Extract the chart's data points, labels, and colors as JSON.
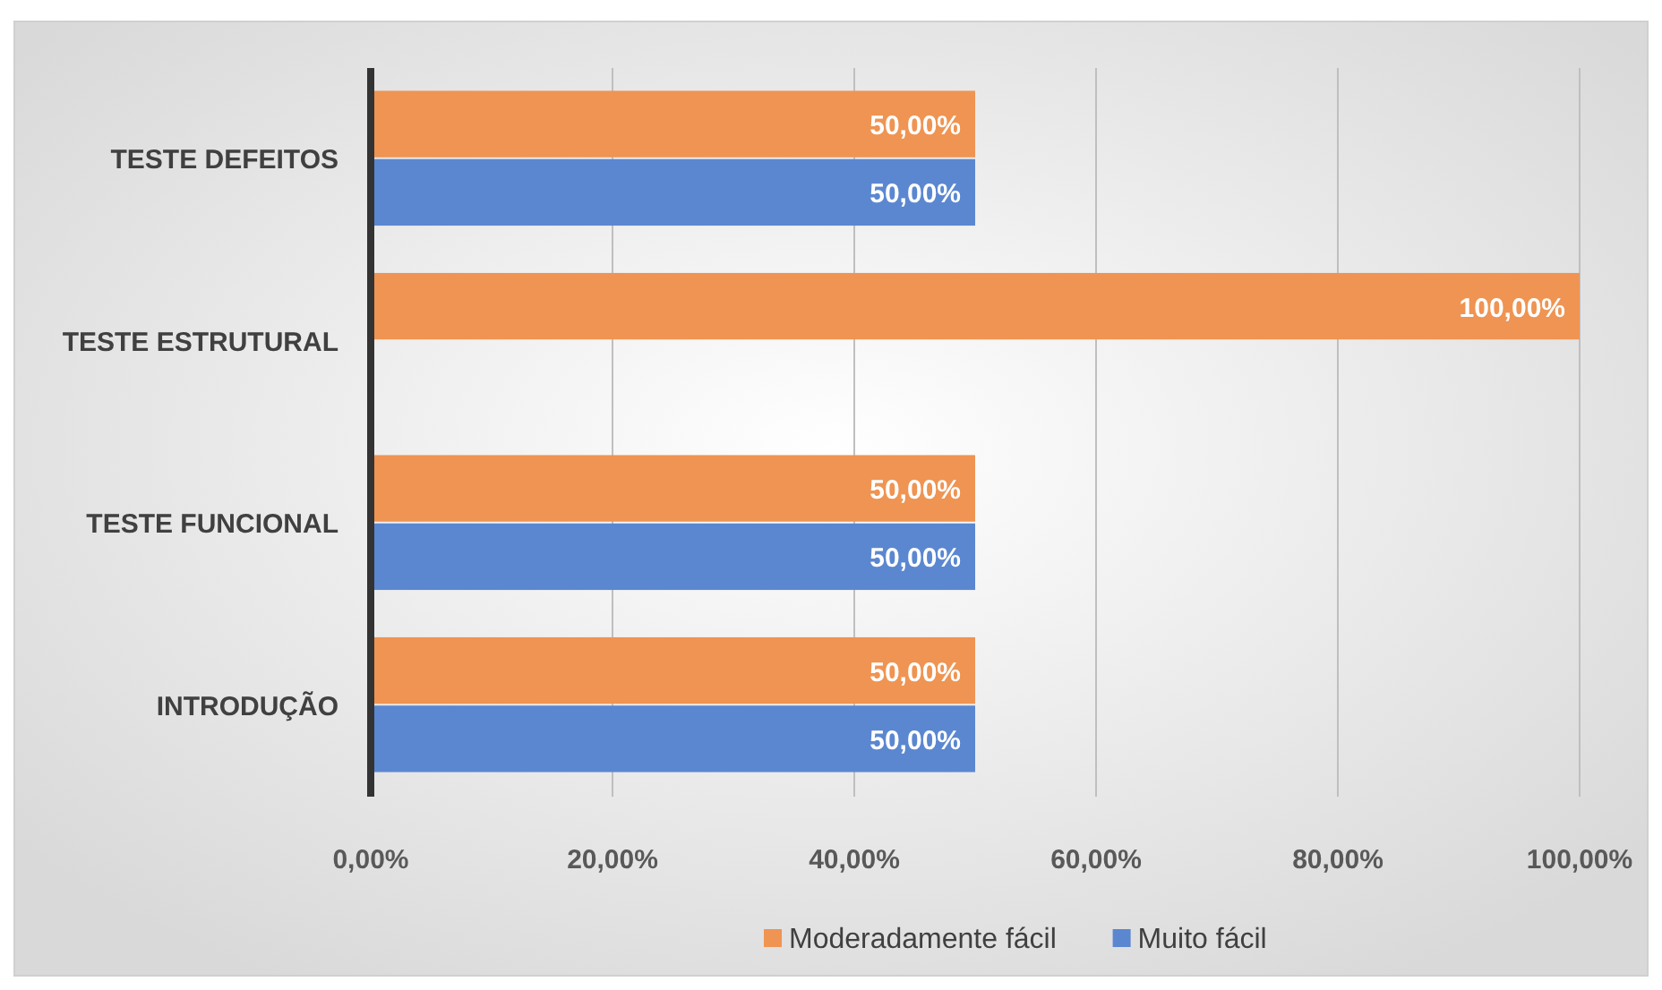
{
  "chart_data": {
    "type": "bar",
    "orientation": "horizontal",
    "categories": [
      "TESTE DEFEITOS",
      "TESTE ESTRUTURAL",
      "TESTE FUNCIONAL",
      "INTRODUÇÃO"
    ],
    "series": [
      {
        "name": "Moderadamente fácil",
        "color": "#ef9452",
        "values": [
          50,
          100,
          50,
          50
        ],
        "value_labels": [
          "50,00%",
          "100,00%",
          "50,00%",
          "50,00%"
        ]
      },
      {
        "name": "Muito fácil",
        "color": "#5b87d0",
        "values": [
          50,
          null,
          50,
          50
        ],
        "value_labels": [
          "50,00%",
          null,
          "50,00%",
          "50,00%"
        ]
      }
    ],
    "xlim": [
      0,
      100
    ],
    "xticks": [
      {
        "value": 0,
        "label": "0,00%"
      },
      {
        "value": 20,
        "label": "20,00%"
      },
      {
        "value": 40,
        "label": "40,00%"
      },
      {
        "value": 60,
        "label": "60,00%"
      },
      {
        "value": 80,
        "label": "80,00%"
      },
      {
        "value": 100,
        "label": "100,00%"
      }
    ],
    "grid": "x",
    "legend": "bottom"
  }
}
